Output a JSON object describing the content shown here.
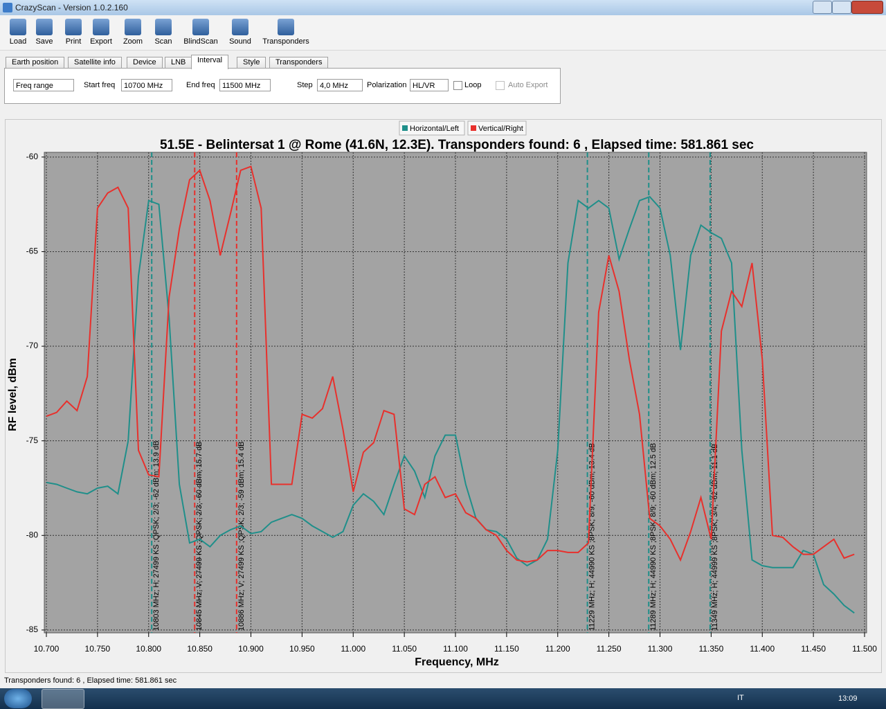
{
  "window": {
    "title": "CrazyScan - Version 1.0.2.160"
  },
  "toolbar": [
    "Load",
    "Save",
    "Print",
    "Export",
    "Zoom",
    "Scan",
    "BlindScan",
    "Sound",
    "Transponders"
  ],
  "tabs": {
    "items": [
      "Earth position",
      "Satellite info",
      "Device",
      "LNB",
      "Interval",
      "Style",
      "Transponders"
    ],
    "active": 4
  },
  "interval": {
    "mode": "Freq range",
    "start_label": "Start freq",
    "start": "10700 MHz",
    "end_label": "End freq",
    "end": "11500 MHz",
    "step_label": "Step",
    "step": "4,0 MHz",
    "pol_label": "Polarization",
    "pol": "HL/VR",
    "loop": "Loop",
    "auto_export": "Auto Export"
  },
  "chart_data": {
    "type": "line",
    "title": "51.5E - Belintersat 1 @ Rome (41.6N, 12.3E). Transponders found: 6 , Elapsed time: 581.861 sec",
    "x_label": "Frequency, MHz",
    "y_label": "RF level, dBm",
    "xlim": [
      10700,
      11500
    ],
    "ylim": [
      -85.15,
      -59.75
    ],
    "xticks": [
      {
        "value": 10700,
        "label": "10.700"
      },
      {
        "value": 10750,
        "label": "10.750"
      },
      {
        "value": 10800,
        "label": "10.800"
      },
      {
        "value": 10850,
        "label": "10.850"
      },
      {
        "value": 10900,
        "label": "10.900"
      },
      {
        "value": 10950,
        "label": "10.950"
      },
      {
        "value": 11000,
        "label": "11.000"
      },
      {
        "value": 11050,
        "label": "11.050"
      },
      {
        "value": 11100,
        "label": "11.100"
      },
      {
        "value": 11150,
        "label": "11.150"
      },
      {
        "value": 11200,
        "label": "11.200"
      },
      {
        "value": 11250,
        "label": "11.250"
      },
      {
        "value": 11300,
        "label": "11.300"
      },
      {
        "value": 11350,
        "label": "11.350"
      },
      {
        "value": 11400,
        "label": "11.400"
      },
      {
        "value": 11450,
        "label": "11.450"
      },
      {
        "value": 11500,
        "label": "11.500"
      }
    ],
    "yticks": [
      -60,
      -65,
      -70,
      -75,
      -80,
      -85
    ],
    "grid": true,
    "x": [
      10700,
      10710,
      10720,
      10730,
      10740,
      10750,
      10760,
      10770,
      10780,
      10790,
      10800,
      10810,
      10820,
      10830,
      10840,
      10850,
      10860,
      10870,
      10880,
      10890,
      10900,
      10910,
      10920,
      10930,
      10940,
      10950,
      10960,
      10970,
      10980,
      10990,
      11000,
      11010,
      11020,
      11030,
      11040,
      11050,
      11060,
      11070,
      11080,
      11090,
      11100,
      11110,
      11120,
      11130,
      11140,
      11150,
      11160,
      11170,
      11180,
      11190,
      11200,
      11210,
      11220,
      11230,
      11240,
      11250,
      11260,
      11270,
      11280,
      11290,
      11300,
      11310,
      11320,
      11330,
      11340,
      11350,
      11360,
      11370,
      11380,
      11390,
      11400,
      11410,
      11420,
      11430,
      11440,
      11450,
      11460,
      11470,
      11480,
      11490
    ],
    "series": [
      {
        "name": "Horizontal/Left",
        "color": "#1f8f8a",
        "values": [
          -77.2,
          -77.3,
          -77.5,
          -77.7,
          -77.8,
          -77.5,
          -77.4,
          -77.8,
          -75.0,
          -66.3,
          -62.3,
          -62.5,
          -68.5,
          -77.3,
          -80.4,
          -80.2,
          -80.6,
          -80.0,
          -79.7,
          -79.5,
          -79.9,
          -79.8,
          -79.3,
          -79.1,
          -78.9,
          -79.1,
          -79.5,
          -79.8,
          -80.1,
          -79.8,
          -78.4,
          -77.8,
          -78.2,
          -78.9,
          -77.3,
          -75.8,
          -76.6,
          -78.0,
          -75.8,
          -74.7,
          -74.7,
          -77.3,
          -79.1,
          -79.7,
          -79.8,
          -80.2,
          -81.2,
          -81.6,
          -81.3,
          -80.2,
          -75.5,
          -65.6,
          -62.3,
          -62.7,
          -62.3,
          -62.7,
          -65.4,
          -63.8,
          -62.3,
          -62.1,
          -62.7,
          -65.2,
          -70.2,
          -65.2,
          -63.6,
          -64.0,
          -64.3,
          -65.6,
          -75.5,
          -81.3,
          -81.6,
          -81.7,
          -81.7,
          -81.7,
          -80.8,
          -81.0,
          -82.6,
          -83.1,
          -83.7,
          -84.1
        ]
      },
      {
        "name": "Vertical/Right",
        "color": "#e8302c",
        "values": [
          -73.7,
          -73.5,
          -72.9,
          -73.4,
          -71.6,
          -62.7,
          -61.9,
          -61.6,
          -62.7,
          -75.5,
          -76.8,
          -76.9,
          -67.4,
          -63.8,
          -61.2,
          -60.7,
          -62.3,
          -65.2,
          -63.0,
          -60.7,
          -60.5,
          -62.7,
          -77.3,
          -77.3,
          -77.3,
          -73.6,
          -73.8,
          -73.3,
          -71.6,
          -74.4,
          -77.7,
          -75.6,
          -75.1,
          -73.4,
          -73.6,
          -78.6,
          -78.9,
          -77.3,
          -76.9,
          -78.0,
          -77.8,
          -78.8,
          -79.1,
          -79.7,
          -80.0,
          -80.8,
          -81.3,
          -81.4,
          -81.3,
          -80.8,
          -80.8,
          -80.9,
          -80.9,
          -80.4,
          -68.2,
          -65.2,
          -67.1,
          -70.7,
          -73.6,
          -79.1,
          -79.5,
          -80.2,
          -81.3,
          -79.8,
          -78.0,
          -80.2,
          -69.2,
          -67.1,
          -67.9,
          -65.6,
          -70.7,
          -80.0,
          -80.1,
          -80.6,
          -81.0,
          -81.0,
          -80.6,
          -80.2,
          -81.2,
          -81.0
        ]
      }
    ],
    "markers": [
      {
        "x": 10803,
        "color": "#1f8f8a",
        "label": "10803 MHz; H; 27499 KS ;QPSK; 2/3; -62 dBm; 13.9 dB"
      },
      {
        "x": 10845,
        "color": "#e8302c",
        "label": "10845 MHz; V; 27499 KS ;QPSK; 2/3; -60 dBm; 15.7 dB"
      },
      {
        "x": 10886,
        "color": "#e8302c",
        "label": "10886 MHz; V; 27499 KS ;QPSK; 2/3; -59 dBm; 15.4 dB"
      },
      {
        "x": 11229,
        "color": "#1f8f8a",
        "label": "11229 MHz; H; 44990 KS ;8PSK; 8/9; -60 dBm; 13.4 dB"
      },
      {
        "x": 11289,
        "color": "#1f8f8a",
        "label": "11289 MHz; H; 44990 KS ;8PSK; 8/9; -60 dBm; 12.5 dB"
      },
      {
        "x": 11349,
        "color": "#1f8f8a",
        "label": "11349 MHz; H; 44999 KS ;8PSK; 3/4; -62 dBm; 11.1 dB"
      }
    ]
  },
  "status": "Transponders found: 6 , Elapsed time: 581.861 sec",
  "taskbar": {
    "lang": "IT",
    "time": "13:09"
  }
}
